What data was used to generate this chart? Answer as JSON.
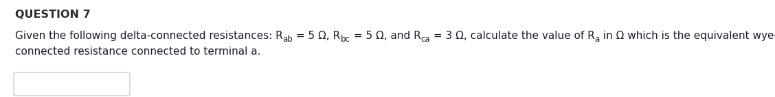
{
  "title": "QUESTION 7",
  "line1_pre": "Given the following delta-connected resistances: R",
  "line1_sub1": "ab",
  "line1_p1": " = 5 Ω, R",
  "line1_sub2": "bc",
  "line1_p2": " = 5 Ω, and R",
  "line1_sub3": "ca",
  "line1_p3": " = 3 Ω, calculate the value of R",
  "line1_sub4": "a",
  "line1_end": " in Ω which is the equivalent wye-",
  "line2": "connected resistance connected to terminal a.",
  "bg_color": "#ffffff",
  "title_color": "#2d2d2d",
  "text_color": "#1a1a2e",
  "box_edge_color": "#c0c0c0",
  "title_fontsize": 11.5,
  "text_fontsize": 11.0,
  "sub_fontsize": 8.5
}
